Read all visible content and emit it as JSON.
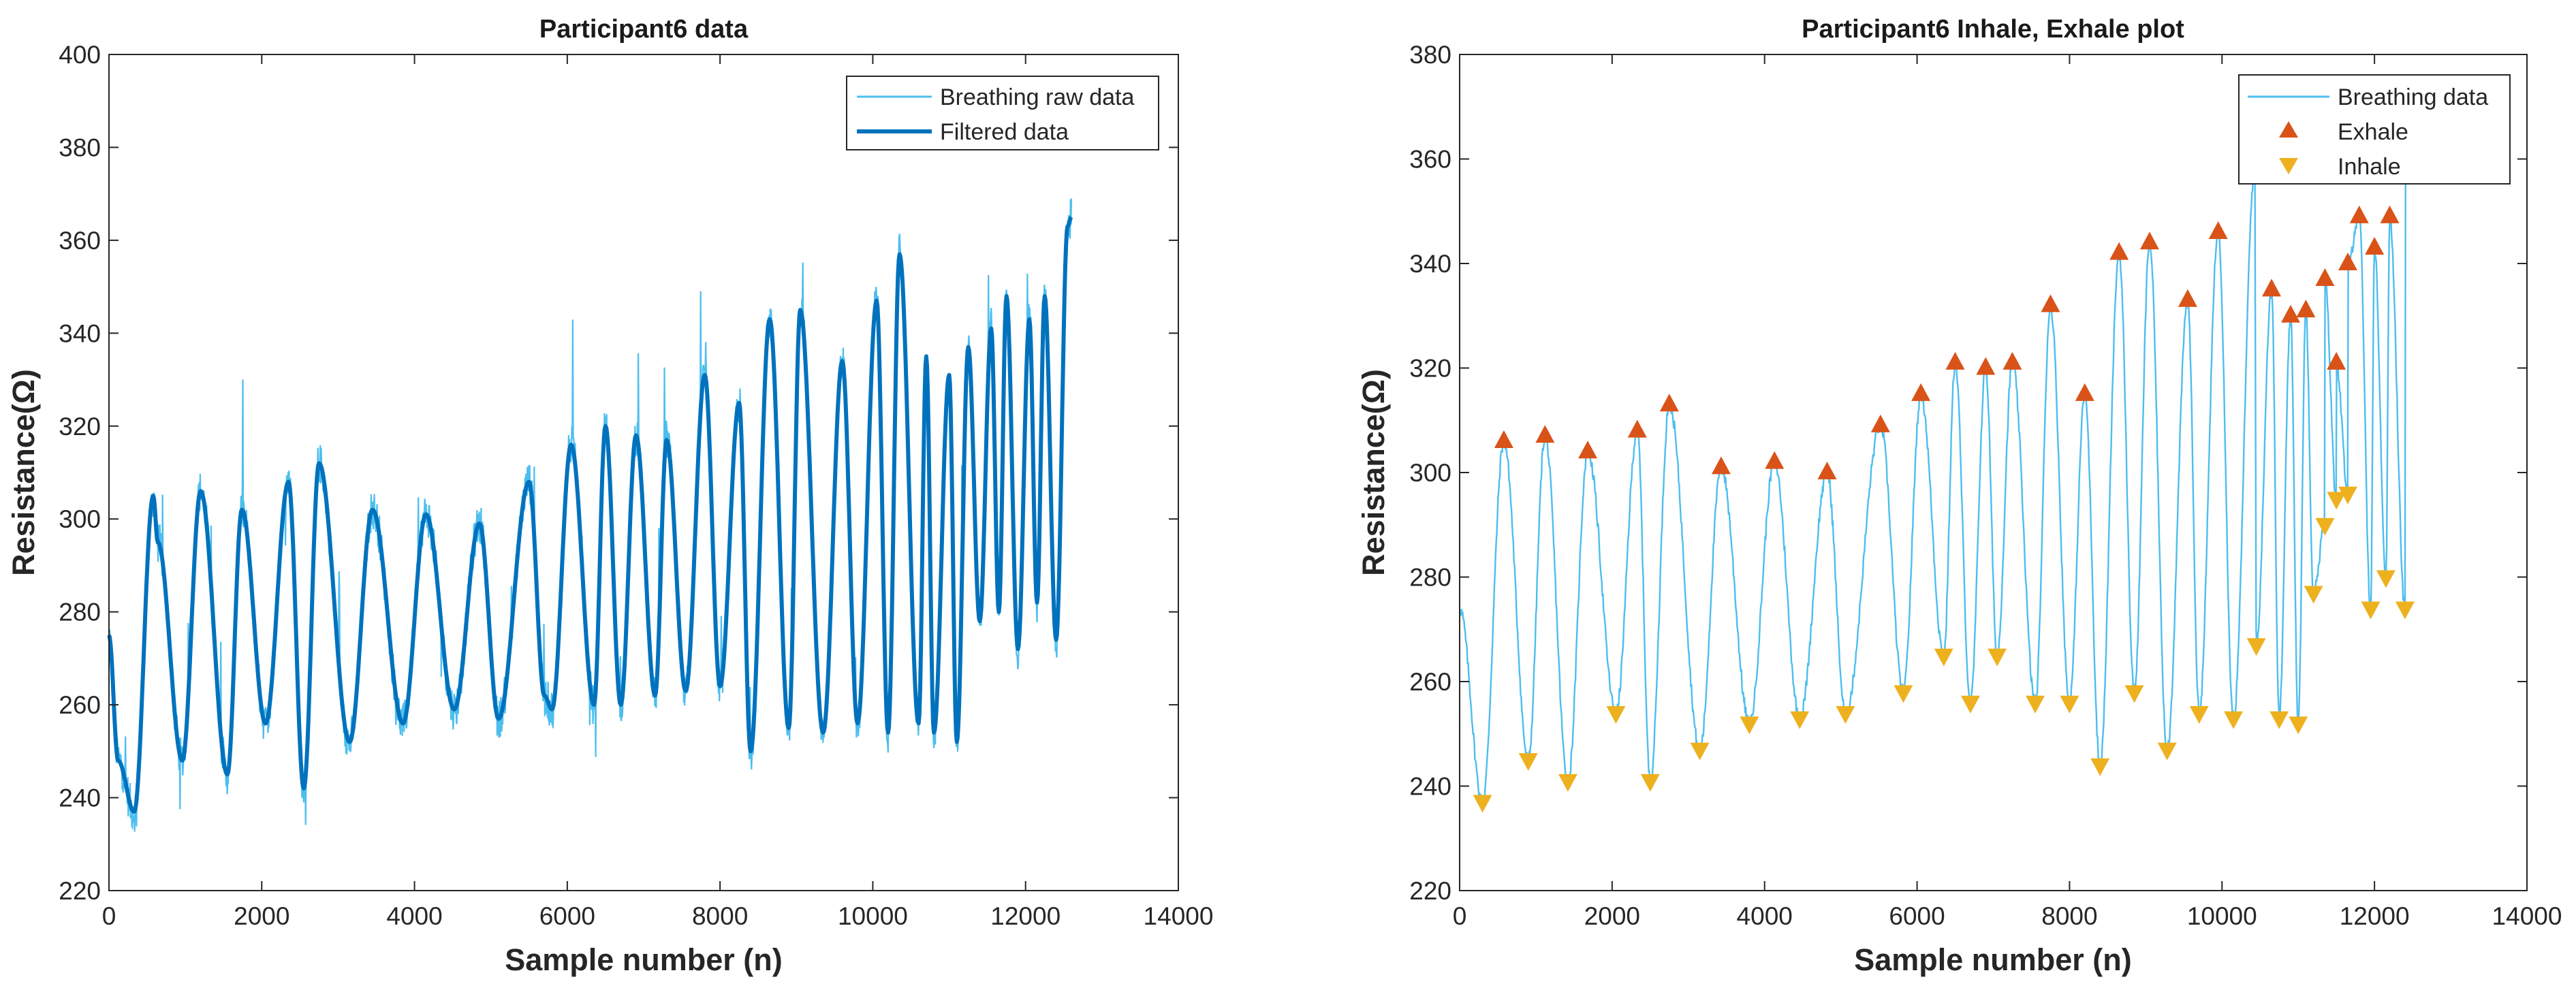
{
  "chart_data": [
    {
      "type": "line",
      "title": "Participant6 data",
      "xlabel": "Sample number (n)",
      "ylabel": "Resistance(Ω)",
      "xlim": [
        0,
        14000
      ],
      "ylim": [
        220,
        400
      ],
      "xticks": [
        0,
        2000,
        4000,
        6000,
        8000,
        10000,
        12000,
        14000
      ],
      "yticks": [
        220,
        240,
        260,
        280,
        300,
        320,
        340,
        360,
        380,
        400
      ],
      "legend_position": "top-right",
      "series": [
        {
          "name": "Breathing raw data",
          "color": "#4DBEEE",
          "style": "thin"
        },
        {
          "name": "Filtered data",
          "color": "#0072BD",
          "style": "thick"
        }
      ],
      "filtered_keypoints": {
        "x": [
          0,
          120,
          330,
          580,
          640,
          960,
          1200,
          1550,
          1740,
          2050,
          2350,
          2550,
          2750,
          3150,
          3450,
          3850,
          4150,
          4520,
          4850,
          5100,
          5500,
          5700,
          5800,
          6050,
          6350,
          6500,
          6700,
          6900,
          7150,
          7300,
          7550,
          7800,
          8000,
          8250,
          8400,
          8650,
          8900,
          9050,
          9350,
          9600,
          9800,
          10050,
          10200,
          10350,
          10600,
          10700,
          10800,
          11000,
          11100,
          11250,
          11400,
          11550,
          11650,
          11750,
          11900,
          12050,
          12150,
          12250,
          12400,
          12550,
          12600
        ],
        "y": [
          275,
          248,
          237,
          305,
          295,
          248,
          306,
          245,
          302,
          256,
          308,
          242,
          312,
          252,
          302,
          256,
          301,
          259,
          299,
          257,
          308,
          262,
          259,
          316,
          260,
          320,
          260,
          318,
          262,
          317,
          263,
          331,
          264,
          325,
          250,
          343,
          255,
          345,
          254,
          334,
          256,
          347,
          254,
          357,
          256,
          335,
          254,
          331,
          252,
          337,
          278,
          341,
          280,
          348,
          272,
          343,
          282,
          348,
          274,
          363,
          365
        ]
      }
    },
    {
      "type": "line",
      "title": "Participant6 Inhale, Exhale plot",
      "xlabel": "Sample number (n)",
      "ylabel": "Resistance(Ω)",
      "xlim": [
        0,
        14000
      ],
      "ylim": [
        220,
        380
      ],
      "xticks": [
        0,
        2000,
        4000,
        6000,
        8000,
        10000,
        12000,
        14000
      ],
      "yticks": [
        220,
        240,
        260,
        280,
        300,
        320,
        340,
        360,
        380
      ],
      "legend_position": "top-right",
      "series": [
        {
          "name": "Breathing data",
          "color": "#4DBEEE",
          "style": "line"
        },
        {
          "name": "Exhale",
          "color": "#D95319",
          "style": "marker-up"
        },
        {
          "name": "Inhale",
          "color": "#EDB120",
          "style": "marker-down"
        }
      ],
      "exhale": {
        "x": [
          580,
          1120,
          1680,
          2330,
          2750,
          3430,
          4130,
          4820,
          5520,
          6050,
          6500,
          6900,
          7250,
          7750,
          8200,
          8650,
          9050,
          9550,
          9950,
          10430,
          10650,
          10900,
          11100,
          11350,
          11500,
          11650,
          11800,
          12000,
          12200,
          12400
        ],
        "y": [
          306,
          307,
          304,
          308,
          313,
          301,
          302,
          300,
          309,
          315,
          321,
          320,
          321,
          332,
          315,
          342,
          344,
          333,
          346,
          358,
          335,
          330,
          331,
          337,
          321,
          340,
          349,
          343,
          349,
          360
        ]
      },
      "inhale": {
        "x": [
          300,
          900,
          1420,
          2050,
          2500,
          3150,
          3800,
          4460,
          5060,
          5820,
          6350,
          6700,
          7050,
          7550,
          8000,
          8400,
          8850,
          9280,
          9700,
          10150,
          10450,
          10750,
          11000,
          11200,
          11350,
          11500,
          11650,
          11950,
          12150,
          12400
        ],
        "y": [
          237,
          245,
          241,
          254,
          241,
          247,
          252,
          253,
          254,
          258,
          265,
          256,
          265,
          256,
          256,
          244,
          258,
          247,
          254,
          253,
          267,
          253,
          252,
          277,
          290,
          295,
          296,
          274,
          280,
          274
        ]
      }
    }
  ]
}
